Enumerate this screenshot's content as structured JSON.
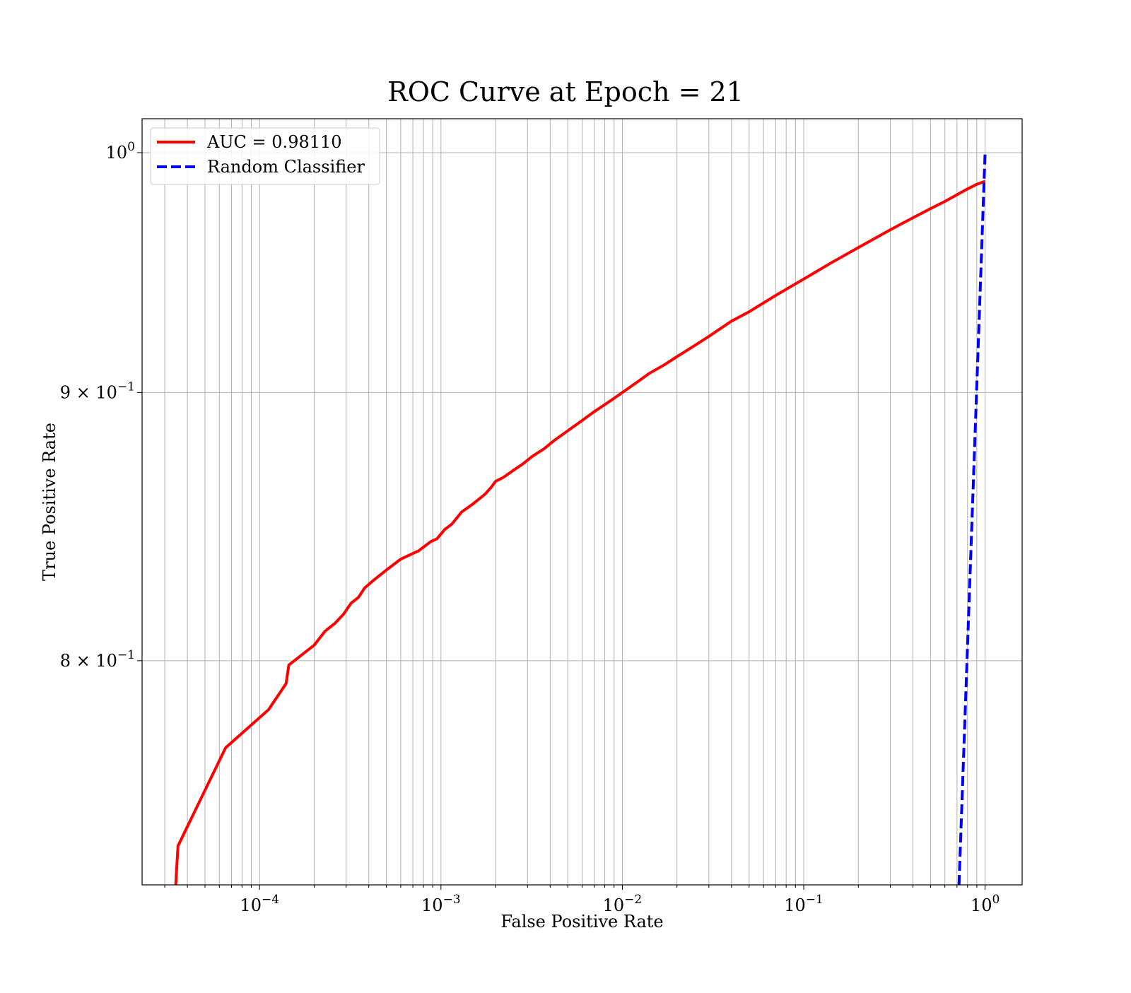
{
  "chart_data": {
    "type": "line",
    "title": "ROC Curve at Epoch = 21",
    "xlabel": "False Positive Rate",
    "ylabel": "True Positive Rate",
    "xscale": "log",
    "yscale": "log",
    "xlim": [
      2.25e-05,
      1.6
    ],
    "ylim": [
      0.725,
      1.015
    ],
    "grid": true,
    "legend_position": "upper-left",
    "x_ticks": [
      {
        "value": 0.0001,
        "base": "10",
        "exp": "−4"
      },
      {
        "value": 0.001,
        "base": "10",
        "exp": "−3"
      },
      {
        "value": 0.01,
        "base": "10",
        "exp": "−2"
      },
      {
        "value": 0.1,
        "base": "10",
        "exp": "−1"
      },
      {
        "value": 1,
        "base": "10",
        "exp": "0"
      }
    ],
    "y_ticks": [
      {
        "value": 1.0,
        "prefix": "",
        "base": "10",
        "exp": "0"
      },
      {
        "value": 0.9,
        "prefix": "9 × ",
        "base": "10",
        "exp": "−1"
      },
      {
        "value": 0.8,
        "prefix": "8 × ",
        "base": "10",
        "exp": "−1"
      }
    ],
    "series": [
      {
        "name": "AUC = 0.98110",
        "color": "#ff0000",
        "style": "solid",
        "x": [
          3.45e-05,
          3.55e-05,
          6.5e-05,
          0.000112,
          0.00014,
          0.000145,
          0.0002,
          0.00023,
          0.00026,
          0.00029,
          0.00032,
          0.00035,
          0.00038,
          0.00042,
          0.0005,
          0.0006,
          0.00075,
          0.00088,
          0.00095,
          0.00105,
          0.00115,
          0.0013,
          0.0015,
          0.00175,
          0.0019,
          0.002,
          0.0022,
          0.0025,
          0.0028,
          0.0032,
          0.0037,
          0.0042,
          0.005,
          0.006,
          0.007,
          0.0085,
          0.01,
          0.012,
          0.014,
          0.017,
          0.02,
          0.025,
          0.03,
          0.04,
          0.05,
          0.07,
          0.1,
          0.14,
          0.2,
          0.3,
          0.4,
          0.5,
          0.6,
          0.7,
          0.8,
          0.9,
          1.0
        ],
        "y": [
          0.725,
          0.7375,
          0.77,
          0.783,
          0.792,
          0.7985,
          0.8055,
          0.8105,
          0.8132,
          0.8165,
          0.8205,
          0.8225,
          0.826,
          0.8285,
          0.8325,
          0.8365,
          0.8395,
          0.843,
          0.844,
          0.8475,
          0.8495,
          0.854,
          0.857,
          0.8607,
          0.8635,
          0.8656,
          0.867,
          0.8697,
          0.872,
          0.8752,
          0.878,
          0.8812,
          0.885,
          0.889,
          0.8925,
          0.8965,
          0.9,
          0.904,
          0.9075,
          0.911,
          0.9143,
          0.9187,
          0.9225,
          0.9287,
          0.9325,
          0.9392,
          0.946,
          0.9525,
          0.9592,
          0.9667,
          0.9718,
          0.9757,
          0.9788,
          0.9817,
          0.9842,
          0.9862,
          0.9875
        ]
      },
      {
        "name": "Random Classifier",
        "color": "#0000ff",
        "style": "dashed",
        "x": [
          0.718,
          1.0
        ],
        "y": [
          0.725,
          1.0
        ]
      }
    ]
  }
}
